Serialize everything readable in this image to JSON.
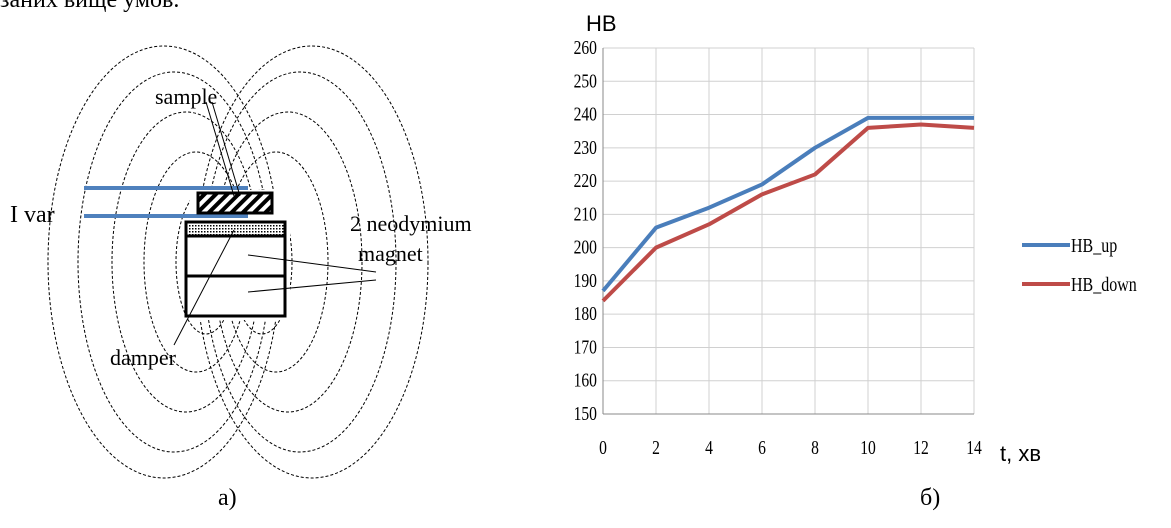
{
  "header_fragment": "заних вище умов.",
  "diagram": {
    "labels": {
      "sample": "sample",
      "current": "I var",
      "magnet": "2 neodymium\nmagnet",
      "magnet_line1": "2 neodymium",
      "magnet_line2": "magnet",
      "damper": "damper"
    },
    "caption": "а)",
    "colors": {
      "wire": "#4f81bd",
      "outline": "#000000"
    }
  },
  "chart": {
    "caption": "б)"
  },
  "chart_data": {
    "type": "line",
    "title": "",
    "ylabel": "HB",
    "xlabel": "t, хв",
    "x": [
      0,
      2,
      4,
      6,
      8,
      10,
      12,
      14
    ],
    "xlim": [
      0,
      14
    ],
    "ylim": [
      150,
      260
    ],
    "yticks": [
      150,
      160,
      170,
      180,
      190,
      200,
      210,
      220,
      230,
      240,
      250,
      260
    ],
    "grid": true,
    "legend_position": "right",
    "series": [
      {
        "name": "HB_up",
        "color": "#4a7ebb",
        "values": [
          187,
          206,
          212,
          219,
          230,
          239,
          239,
          239
        ]
      },
      {
        "name": "HB_down",
        "color": "#be4b48",
        "values": [
          184,
          200,
          207,
          216,
          222,
          236,
          237,
          236
        ]
      }
    ]
  }
}
